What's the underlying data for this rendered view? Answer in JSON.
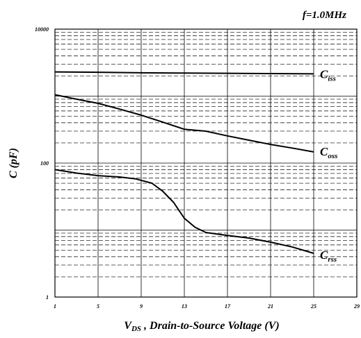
{
  "chart_data": {
    "type": "line",
    "title": "f=1.0MHz",
    "xlabel": {
      "main": "V",
      "sub": "DS",
      "rest": " , Drain-to-Source Voltage (V)"
    },
    "ylabel": "C (pF)",
    "xlim": [
      1,
      29
    ],
    "ylim": [
      1,
      10000
    ],
    "yscale": "log",
    "grid": true,
    "x_ticks": [
      "1",
      "5",
      "9",
      "13",
      "17",
      "21",
      "25",
      "29"
    ],
    "y_ticks": [
      "1",
      "100",
      "10000"
    ],
    "series": [
      {
        "name": "C",
        "sub": "iss",
        "x": [
          1,
          5,
          9,
          13,
          17,
          21,
          25
        ],
        "values": [
          2300,
          2270,
          2230,
          2210,
          2190,
          2170,
          2150
        ]
      },
      {
        "name": "C",
        "sub": "oss",
        "x": [
          1,
          3,
          5,
          7,
          9,
          11,
          13,
          15,
          17,
          19,
          21,
          23,
          25
        ],
        "values": [
          1050,
          900,
          780,
          640,
          520,
          410,
          320,
          300,
          255,
          220,
          190,
          168,
          147
        ]
      },
      {
        "name": "C",
        "sub": "rss",
        "x": [
          1,
          3,
          5,
          7,
          8.5,
          10,
          11,
          12,
          13,
          14,
          15,
          17,
          19,
          21,
          23,
          25
        ],
        "values": [
          80,
          71,
          65,
          62,
          58,
          50,
          38,
          26,
          15,
          11,
          9.2,
          8.3,
          7.6,
          6.6,
          5.6,
          4.5
        ]
      }
    ]
  }
}
